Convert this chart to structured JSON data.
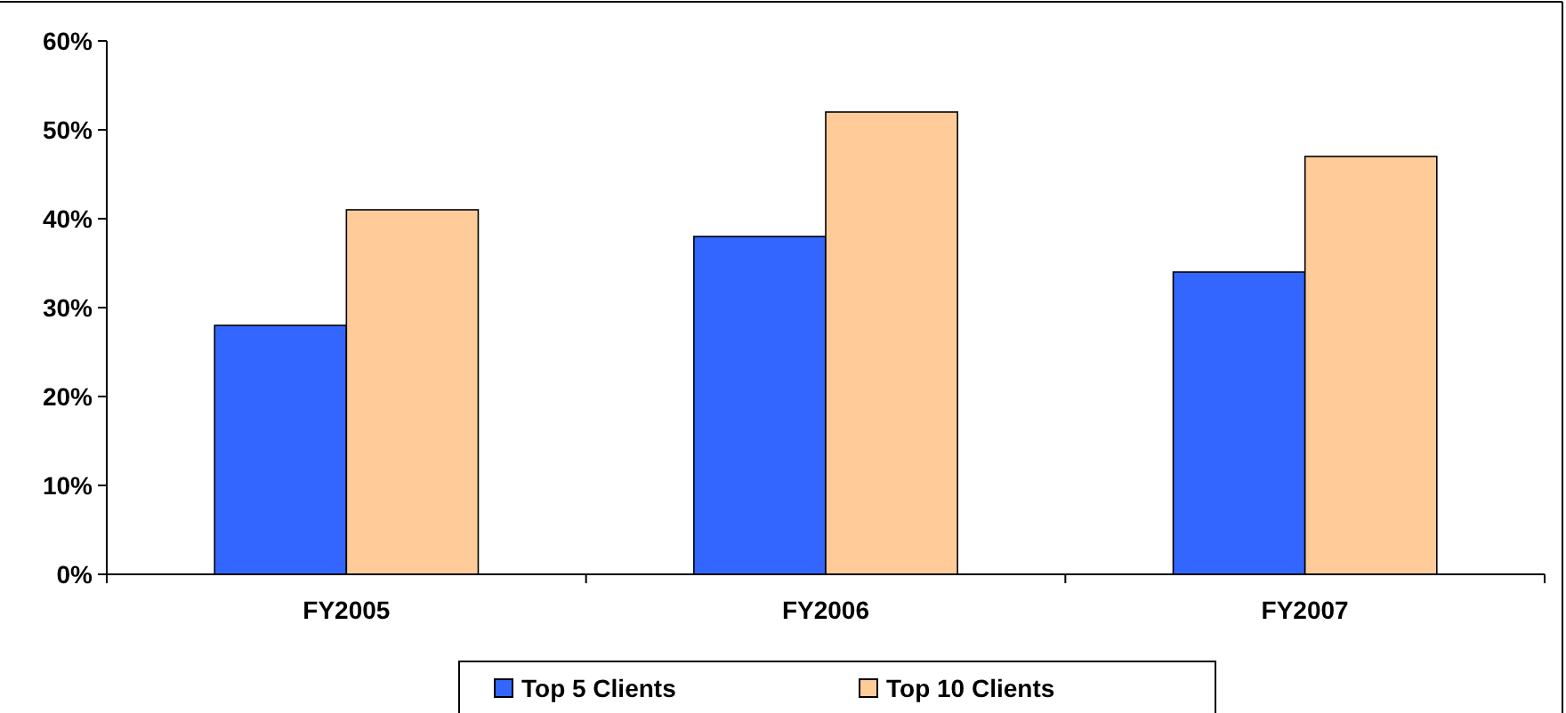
{
  "chart_data": {
    "type": "bar",
    "categories": [
      "FY2005",
      "FY2006",
      "FY2007"
    ],
    "series": [
      {
        "name": "Top 5 Clients",
        "color": "#3366ff",
        "values": [
          28,
          38,
          34
        ]
      },
      {
        "name": "Top 10 Clients",
        "color": "#ffcc99",
        "values": [
          41,
          52,
          47
        ]
      }
    ],
    "ylim": [
      0,
      60
    ],
    "yticks": [
      {
        "value": 0,
        "label": "0%"
      },
      {
        "value": 10,
        "label": "10%"
      },
      {
        "value": 20,
        "label": "20%"
      },
      {
        "value": 30,
        "label": "30%"
      },
      {
        "value": 40,
        "label": "40%"
      },
      {
        "value": 50,
        "label": "50%"
      },
      {
        "value": 60,
        "label": "60%"
      }
    ],
    "grid": false,
    "legend": "bottom"
  }
}
